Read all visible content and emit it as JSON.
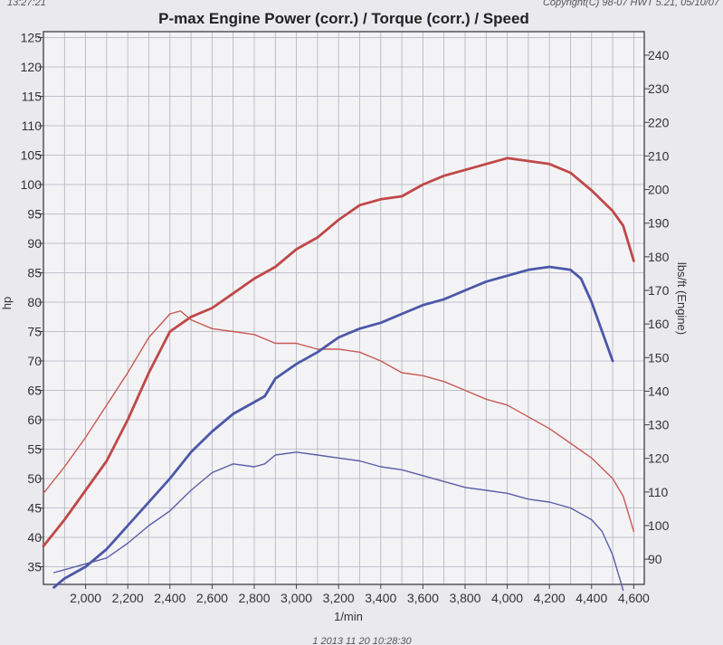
{
  "chart_data": {
    "type": "line",
    "title": "P-max Engine Power (corr.) / Torque (corr.) / Speed",
    "header_left": "13:27:21",
    "header_right": "Copyright(C) 98-07 HWT 5.21, 05/10/07",
    "footer_text": "1 2013 11 20 10:28:30",
    "xlabel": "1/min",
    "ylabel_left": "hp",
    "ylabel_right": "lbs/ft (Engine)",
    "xlim": [
      1800,
      4650
    ],
    "ylim_left": [
      32,
      126
    ],
    "ylim_right": [
      82.5,
      247
    ],
    "x_ticks": [
      "2,000",
      "2,200",
      "2,400",
      "2,600",
      "2,800",
      "3,000",
      "3,200",
      "3,400",
      "3,600",
      "3,800",
      "4,000",
      "4,200",
      "4,400",
      "4,600"
    ],
    "x_tick_values": [
      2000,
      2200,
      2400,
      2600,
      2800,
      3000,
      3200,
      3400,
      3600,
      3800,
      4000,
      4200,
      4400,
      4600
    ],
    "y_left_ticks": [
      "125",
      "120",
      "115",
      "110",
      "105",
      "100",
      "95",
      "90",
      "85",
      "80",
      "75",
      "70",
      "65",
      "60",
      "55",
      "50",
      "45",
      "40",
      "35"
    ],
    "y_left_tick_values": [
      125,
      120,
      115,
      110,
      105,
      100,
      95,
      90,
      85,
      80,
      75,
      70,
      65,
      60,
      55,
      50,
      45,
      40,
      35
    ],
    "y_right_ticks": [
      "240",
      "230",
      "220",
      "210",
      "200",
      "190",
      "180",
      "170",
      "160",
      "150",
      "140",
      "130",
      "120",
      "110",
      "100",
      "90"
    ],
    "y_right_tick_values": [
      240,
      230,
      220,
      210,
      200,
      190,
      180,
      170,
      160,
      150,
      140,
      130,
      120,
      110,
      100,
      90
    ],
    "grid": true,
    "series": [
      {
        "axis": "left",
        "color": "#c04848",
        "width": 2.8,
        "x": [
          1800,
          1900,
          2000,
          2100,
          2200,
          2300,
          2400,
          2500,
          2600,
          2700,
          2800,
          2900,
          3000,
          3100,
          3200,
          3300,
          3400,
          3500,
          3600,
          3700,
          3800,
          3900,
          4000,
          4100,
          4200,
          4300,
          4400,
          4500,
          4550,
          4600
        ],
        "y": [
          38.5,
          43,
          48,
          53,
          60,
          68,
          75,
          77.5,
          79,
          81.5,
          84,
          86,
          89,
          91,
          94,
          96.5,
          97.5,
          98,
          100,
          101.5,
          102.5,
          103.5,
          104.5,
          104,
          103.5,
          102,
          99,
          95.5,
          93,
          87
        ]
      },
      {
        "axis": "left",
        "color": "#c85a55",
        "width": 1.4,
        "x": [
          1800,
          1900,
          2000,
          2100,
          2200,
          2300,
          2400,
          2450,
          2500,
          2600,
          2700,
          2800,
          2900,
          3000,
          3100,
          3200,
          3300,
          3400,
          3500,
          3600,
          3700,
          3800,
          3900,
          4000,
          4100,
          4200,
          4300,
          4400,
          4500,
          4550,
          4600
        ],
        "y": [
          47.5,
          52,
          57,
          62.5,
          68,
          74,
          78,
          78.5,
          77,
          75.5,
          75,
          74.5,
          73,
          73,
          72,
          72,
          71.5,
          70,
          68,
          67.5,
          66.5,
          65,
          63.5,
          62.5,
          60.5,
          58.5,
          56,
          53.5,
          50,
          47,
          41
        ]
      },
      {
        "axis": "left",
        "color": "#4c57a8",
        "width": 2.8,
        "x": [
          1850,
          1900,
          2000,
          2100,
          2200,
          2300,
          2400,
          2500,
          2600,
          2700,
          2800,
          2850,
          2900,
          3000,
          3100,
          3200,
          3300,
          3400,
          3500,
          3600,
          3700,
          3800,
          3900,
          4000,
          4100,
          4200,
          4300,
          4350,
          4400,
          4450,
          4500
        ],
        "y": [
          31.5,
          33,
          35,
          38,
          42,
          46,
          50,
          54.5,
          58,
          61,
          63,
          64,
          67,
          69.5,
          71.5,
          74,
          75.5,
          76.5,
          78,
          79.5,
          80.5,
          82,
          83.5,
          84.5,
          85.5,
          86,
          85.5,
          84,
          80,
          75,
          70
        ]
      },
      {
        "axis": "left",
        "color": "#5a5ea5",
        "width": 1.4,
        "x": [
          1850,
          1900,
          2000,
          2100,
          2200,
          2300,
          2400,
          2500,
          2600,
          2700,
          2800,
          2850,
          2900,
          3000,
          3100,
          3200,
          3300,
          3400,
          3500,
          3600,
          3700,
          3800,
          3900,
          4000,
          4100,
          4200,
          4300,
          4400,
          4450,
          4500,
          4550
        ],
        "y": [
          34,
          34.5,
          35.5,
          36.5,
          39,
          42,
          44.5,
          48,
          51,
          52.5,
          52,
          52.5,
          54,
          54.5,
          54,
          53.5,
          53,
          52,
          51.5,
          50.5,
          49.5,
          48.5,
          48,
          47.5,
          46.5,
          46,
          45,
          43,
          41,
          37,
          31
        ]
      }
    ]
  }
}
